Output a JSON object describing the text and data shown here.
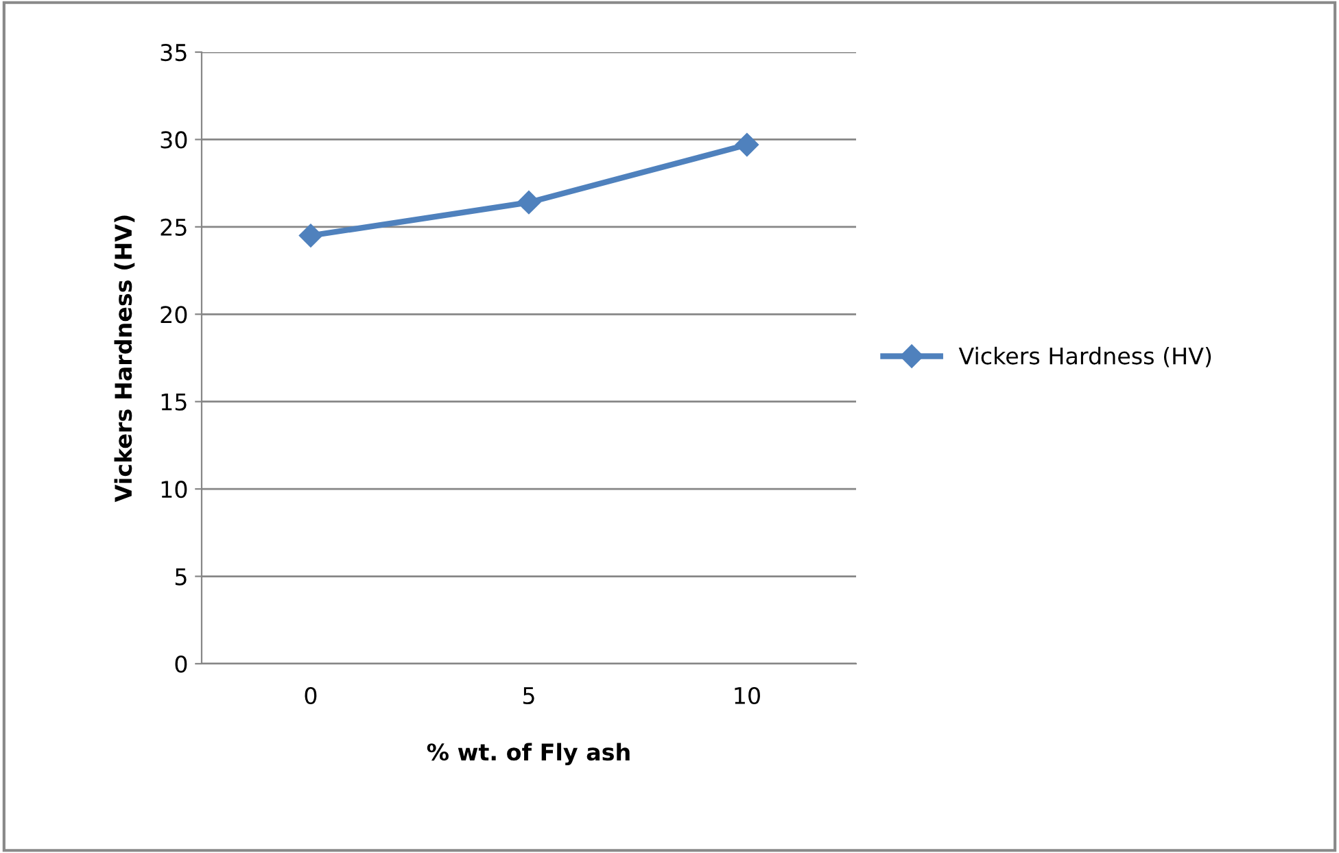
{
  "chart_data": {
    "type": "line",
    "xlabel": "% wt. of Fly ash",
    "ylabel": "Vickers Hardness (HV)",
    "categories": [
      "0",
      "5",
      "10"
    ],
    "series": [
      {
        "name": "Vickers Hardness (HV)",
        "color": "#4f81bd",
        "values": [
          24.5,
          26.4,
          29.7
        ]
      }
    ],
    "ylim": [
      0,
      35
    ],
    "yticks": [
      0,
      5,
      10,
      15,
      20,
      25,
      30,
      35
    ],
    "grid": "y",
    "legend": "right",
    "marker": "diamond",
    "line_style": "solid"
  }
}
